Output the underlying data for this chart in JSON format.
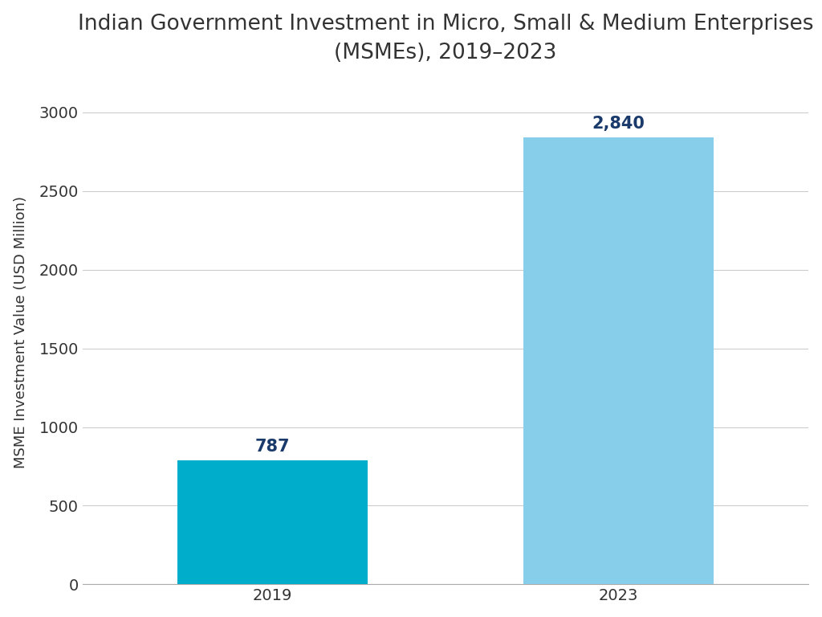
{
  "categories": [
    "2019",
    "2023"
  ],
  "values": [
    787,
    2840
  ],
  "bar_colors": [
    "#00AECC",
    "#87CEEB"
  ],
  "title_line1": "Indian Government Investment in Micro, Small & Medium Enterprises",
  "title_line2": "(MSMEs), 2019–2023",
  "ylabel": "MSME Investment Value (USD Million)",
  "ylim": [
    0,
    3200
  ],
  "yticks": [
    0,
    500,
    1000,
    1500,
    2000,
    2500,
    3000
  ],
  "label_color": "#1a3a6b",
  "label_fontsize": 15,
  "title_color": "#333333",
  "title_fontsize": 19,
  "ylabel_fontsize": 13,
  "tick_fontsize": 14,
  "bg_color": "#ffffff",
  "grid_color": "#cccccc",
  "bar_width": 0.55
}
